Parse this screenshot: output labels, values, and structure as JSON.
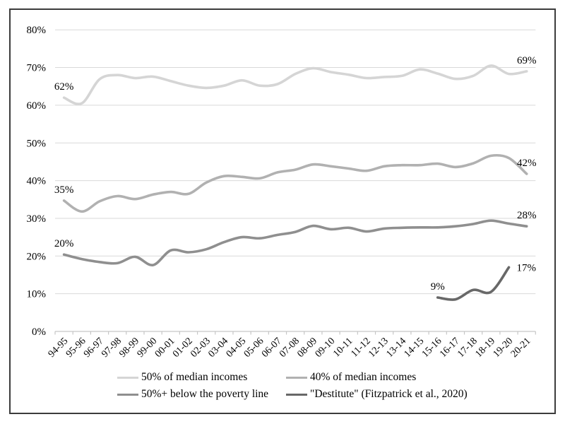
{
  "figure": {
    "background": "#ffffff",
    "border_color": "#3c3c3c",
    "gridline_color": "#d9d9d9",
    "axis_color": "#c6c6c6",
    "text_color": "#000000"
  },
  "chart_data": {
    "type": "line",
    "title": "",
    "xlabel": "",
    "ylabel": "",
    "grid": true,
    "smooth": true,
    "legend_position": "bottom",
    "y_axis": {
      "min": 0,
      "max": 80,
      "step": 10,
      "tick_labels": [
        "0%",
        "10%",
        "20%",
        "30%",
        "40%",
        "50%",
        "60%",
        "70%",
        "80%"
      ]
    },
    "x_labels": [
      "94-95",
      "95-96",
      "96-97",
      "97-98",
      "98-99",
      "99-00",
      "00-01",
      "01-02",
      "02-03",
      "03-04",
      "04-05",
      "05-06",
      "06-07",
      "07-08",
      "08-09",
      "09-10",
      "10-11",
      "11-12",
      "12-13",
      "13-14",
      "14-15",
      "15-16",
      "16-17",
      "17-18",
      "18-19",
      "19-20",
      "20-21"
    ],
    "series": [
      {
        "name": "50% of median incomes",
        "color": "#d5d5d5",
        "values": [
          62,
          60.5,
          66.9,
          68,
          67.2,
          67.6,
          66.4,
          65.2,
          64.6,
          65.2,
          66.6,
          65.2,
          65.6,
          68.3,
          69.8,
          68.8,
          68.1,
          67.2,
          67.5,
          67.8,
          69.5,
          68.4,
          67,
          67.8,
          70.5,
          68.3,
          69
        ]
      },
      {
        "name": "40% of median incomes",
        "color": "#b1b1b1",
        "values": [
          34.7,
          31.8,
          34.5,
          35.9,
          35.1,
          36.3,
          37,
          36.5,
          39.5,
          41.2,
          41,
          40.6,
          42.2,
          42.9,
          44.3,
          43.8,
          43.2,
          42.6,
          43.8,
          44.1,
          44.1,
          44.5,
          43.6,
          44.6,
          46.6,
          46,
          41.8
        ]
      },
      {
        "name": "50%+ below the poverty line",
        "color": "#8f8f8f",
        "values": [
          20.4,
          19.2,
          18.4,
          18.1,
          19.8,
          17.6,
          21.5,
          21,
          21.8,
          23.7,
          25,
          24.7,
          25.6,
          26.4,
          28,
          27.1,
          27.5,
          26.5,
          27.3,
          27.5,
          27.6,
          27.6,
          27.9,
          28.5,
          29.4,
          28.6,
          27.9
        ]
      },
      {
        "name": "\"Destitute\" (Fitzpatrick et al., 2020)",
        "color": "#686868",
        "values": [
          null,
          null,
          null,
          null,
          null,
          null,
          null,
          null,
          null,
          null,
          null,
          null,
          null,
          null,
          null,
          null,
          null,
          null,
          null,
          null,
          null,
          9,
          8.5,
          11,
          10.5,
          17,
          null
        ]
      }
    ],
    "annotations": [
      {
        "text": "62%",
        "series": 0,
        "point": 0,
        "pos": "above"
      },
      {
        "text": "69%",
        "series": 0,
        "point": 26,
        "pos": "above"
      },
      {
        "text": "35%",
        "series": 1,
        "point": 0,
        "pos": "above"
      },
      {
        "text": "42%",
        "series": 1,
        "point": 26,
        "pos": "above"
      },
      {
        "text": "20%",
        "series": 2,
        "point": 0,
        "pos": "above"
      },
      {
        "text": "28%",
        "series": 2,
        "point": 26,
        "pos": "above"
      },
      {
        "text": "9%",
        "series": 3,
        "point": 21,
        "pos": "above"
      },
      {
        "text": "17%",
        "series": 3,
        "point": 25,
        "pos": "right"
      }
    ]
  }
}
